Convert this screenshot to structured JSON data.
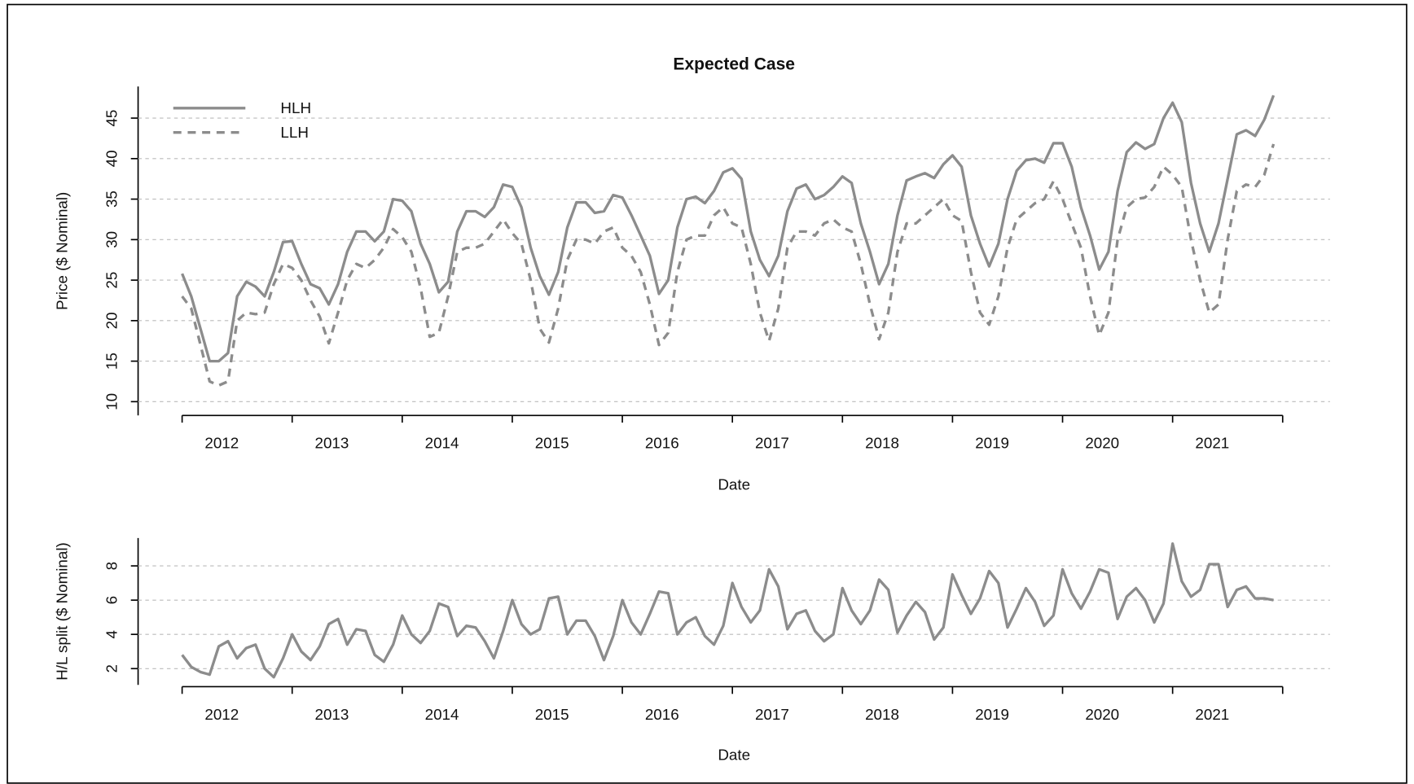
{
  "chart_data": [
    {
      "type": "line",
      "title": "Expected Case",
      "xlabel": "Date",
      "ylabel": "Price ($ Nominal)",
      "x": [
        2012,
        2012.083,
        2012.167,
        2012.25,
        2012.333,
        2012.417,
        2012.5,
        2012.583,
        2012.667,
        2012.75,
        2012.833,
        2012.917,
        2013,
        2013.083,
        2013.167,
        2013.25,
        2013.333,
        2013.417,
        2013.5,
        2013.583,
        2013.667,
        2013.75,
        2013.833,
        2013.917,
        2014,
        2014.083,
        2014.167,
        2014.25,
        2014.333,
        2014.417,
        2014.5,
        2014.583,
        2014.667,
        2014.75,
        2014.833,
        2014.917,
        2015,
        2015.083,
        2015.167,
        2015.25,
        2015.333,
        2015.417,
        2015.5,
        2015.583,
        2015.667,
        2015.75,
        2015.833,
        2015.917,
        2016,
        2016.083,
        2016.167,
        2016.25,
        2016.333,
        2016.417,
        2016.5,
        2016.583,
        2016.667,
        2016.75,
        2016.833,
        2016.917,
        2017,
        2017.083,
        2017.167,
        2017.25,
        2017.333,
        2017.417,
        2017.5,
        2017.583,
        2017.667,
        2017.75,
        2017.833,
        2017.917,
        2018,
        2018.083,
        2018.167,
        2018.25,
        2018.333,
        2018.417,
        2018.5,
        2018.583,
        2018.667,
        2018.75,
        2018.833,
        2018.917,
        2019,
        2019.083,
        2019.167,
        2019.25,
        2019.333,
        2019.417,
        2019.5,
        2019.583,
        2019.667,
        2019.75,
        2019.833,
        2019.917,
        2020,
        2020.083,
        2020.167,
        2020.25,
        2020.333,
        2020.417,
        2020.5,
        2020.583,
        2020.667,
        2020.75,
        2020.833,
        2020.917,
        2021,
        2021.083,
        2021.167,
        2021.25,
        2021.333,
        2021.417,
        2021.5,
        2021.583,
        2021.667,
        2021.75,
        2021.833,
        2021.917
      ],
      "series": [
        {
          "name": "HLH",
          "color": "#8c8c8c",
          "style": "solid",
          "values": [
            25.8,
            23,
            19,
            15,
            15,
            16,
            23,
            24.8,
            24.2,
            23,
            26,
            29.7,
            29.8,
            27,
            24.5,
            24,
            22,
            24.5,
            28.5,
            31,
            31,
            29.8,
            31,
            35,
            34.8,
            33.5,
            29.5,
            27,
            23.5,
            24.8,
            31,
            33.5,
            33.5,
            32.8,
            34,
            36.8,
            36.5,
            34,
            29,
            25.5,
            23.2,
            26,
            31.5,
            34.6,
            34.6,
            33.3,
            33.5,
            35.5,
            35.2,
            33,
            30.5,
            28,
            23.3,
            25,
            31.5,
            35,
            35.3,
            34.5,
            36,
            38.3,
            38.8,
            37.5,
            31,
            27.5,
            25.5,
            28,
            33.5,
            36.3,
            36.8,
            35,
            35.5,
            36.5,
            37.8,
            37,
            32,
            28.5,
            24.5,
            27,
            33,
            37.3,
            37.8,
            38.2,
            37.6,
            39.3,
            40.4,
            39,
            33,
            29.5,
            26.7,
            29.5,
            35,
            38.5,
            39.8,
            40,
            39.5,
            41.9,
            41.9,
            39,
            34,
            30.5,
            26.3,
            28.5,
            36,
            40.8,
            42,
            41.2,
            41.8,
            45,
            46.9,
            44.5,
            37,
            32,
            28.5,
            32,
            37.5,
            43,
            43.5,
            42.8,
            44.8,
            47.8
          ]
        },
        {
          "name": "LLH",
          "color": "#8c8c8c",
          "style": "dashed",
          "values": [
            23,
            21.5,
            17,
            12.5,
            12,
            12.5,
            20,
            21,
            20.8,
            21,
            24.5,
            27,
            26.5,
            25,
            22.5,
            20.5,
            17.2,
            21,
            25,
            27,
            26.5,
            27.5,
            29,
            31.3,
            30.3,
            28.5,
            24,
            18,
            18.5,
            23,
            28.5,
            29,
            29,
            29.5,
            31,
            32.5,
            30.8,
            29.5,
            25,
            19,
            17.3,
            21.5,
            27.5,
            30,
            30,
            29.5,
            31,
            31.5,
            29,
            28,
            26,
            22,
            17,
            18.5,
            26,
            30,
            30.5,
            30.5,
            33,
            34,
            32,
            31.5,
            27,
            21,
            17.5,
            21.5,
            29,
            31,
            31,
            30.5,
            32,
            32.5,
            31.5,
            31,
            27,
            22,
            17.7,
            21,
            28.5,
            32,
            32,
            33,
            34,
            35,
            33,
            32.3,
            26,
            21,
            19.5,
            23,
            29,
            32.5,
            33.5,
            34.5,
            35,
            37.2,
            35,
            32,
            29,
            23,
            18.2,
            21,
            30,
            34,
            35,
            35.2,
            36.5,
            39,
            38,
            36.5,
            30,
            25,
            21,
            22,
            30,
            36,
            36.8,
            36.5,
            38,
            41.8
          ]
        }
      ],
      "xlim": [
        2011.6,
        2022.43
      ],
      "ylim": [
        8.3,
        48.9
      ],
      "xticks": [
        {
          "value": 2012,
          "label": "2012"
        },
        {
          "value": 2013,
          "label": "2013"
        },
        {
          "value": 2014,
          "label": "2014"
        },
        {
          "value": 2015,
          "label": "2015"
        },
        {
          "value": 2016,
          "label": "2016"
        },
        {
          "value": 2017,
          "label": "2017"
        },
        {
          "value": 2018,
          "label": "2018"
        },
        {
          "value": 2019,
          "label": "2019"
        },
        {
          "value": 2020,
          "label": "2020"
        },
        {
          "value": 2021,
          "label": "2021"
        },
        {
          "value": 2022,
          "label": null
        }
      ],
      "yticks": [
        10,
        15,
        20,
        25,
        30,
        35,
        40,
        45
      ],
      "grid": true,
      "legend": "top-left"
    },
    {
      "type": "line",
      "xlabel": "Date",
      "ylabel": "H/L split ($ Nominal)",
      "x": [
        2012,
        2012.083,
        2012.167,
        2012.25,
        2012.333,
        2012.417,
        2012.5,
        2012.583,
        2012.667,
        2012.75,
        2012.833,
        2012.917,
        2013,
        2013.083,
        2013.167,
        2013.25,
        2013.333,
        2013.417,
        2013.5,
        2013.583,
        2013.667,
        2013.75,
        2013.833,
        2013.917,
        2014,
        2014.083,
        2014.167,
        2014.25,
        2014.333,
        2014.417,
        2014.5,
        2014.583,
        2014.667,
        2014.75,
        2014.833,
        2014.917,
        2015,
        2015.083,
        2015.167,
        2015.25,
        2015.333,
        2015.417,
        2015.5,
        2015.583,
        2015.667,
        2015.75,
        2015.833,
        2015.917,
        2016,
        2016.083,
        2016.167,
        2016.25,
        2016.333,
        2016.417,
        2016.5,
        2016.583,
        2016.667,
        2016.75,
        2016.833,
        2016.917,
        2017,
        2017.083,
        2017.167,
        2017.25,
        2017.333,
        2017.417,
        2017.5,
        2017.583,
        2017.667,
        2017.75,
        2017.833,
        2017.917,
        2018,
        2018.083,
        2018.167,
        2018.25,
        2018.333,
        2018.417,
        2018.5,
        2018.583,
        2018.667,
        2018.75,
        2018.833,
        2018.917,
        2019,
        2019.083,
        2019.167,
        2019.25,
        2019.333,
        2019.417,
        2019.5,
        2019.583,
        2019.667,
        2019.75,
        2019.833,
        2019.917,
        2020,
        2020.083,
        2020.167,
        2020.25,
        2020.333,
        2020.417,
        2020.5,
        2020.583,
        2020.667,
        2020.75,
        2020.833,
        2020.917,
        2021,
        2021.083,
        2021.167,
        2021.25,
        2021.333,
        2021.417,
        2021.5,
        2021.583,
        2021.667,
        2021.75,
        2021.833,
        2021.917
      ],
      "series": [
        {
          "color": "#8c8c8c",
          "style": "solid",
          "values": [
            2.8,
            2.1,
            1.8,
            1.65,
            3.3,
            3.6,
            2.6,
            3.2,
            3.4,
            2.0,
            1.5,
            2.6,
            4.0,
            3.0,
            2.5,
            3.3,
            4.6,
            4.9,
            3.4,
            4.3,
            4.2,
            2.8,
            2.4,
            3.4,
            5.1,
            4.0,
            3.5,
            4.2,
            5.8,
            5.6,
            3.9,
            4.5,
            4.4,
            3.6,
            2.6,
            4.2,
            6.0,
            4.6,
            4.0,
            4.3,
            6.1,
            6.2,
            4.0,
            4.8,
            4.8,
            3.9,
            2.5,
            3.9,
            6.0,
            4.7,
            4.0,
            5.2,
            6.5,
            6.4,
            4.0,
            4.7,
            5.0,
            3.9,
            3.4,
            4.5,
            7.0,
            5.6,
            4.7,
            5.4,
            7.8,
            6.8,
            4.3,
            5.2,
            5.4,
            4.2,
            3.6,
            4.0,
            6.7,
            5.4,
            4.6,
            5.4,
            7.2,
            6.6,
            4.1,
            5.1,
            5.9,
            5.3,
            3.7,
            4.4,
            7.5,
            6.3,
            5.2,
            6.1,
            7.7,
            7.0,
            4.4,
            5.5,
            6.7,
            5.9,
            4.5,
            5.1,
            7.8,
            6.4,
            5.5,
            6.5,
            7.8,
            7.6,
            4.9,
            6.2,
            6.7,
            6.0,
            4.7,
            5.8,
            9.3,
            7.1,
            6.2,
            6.6,
            8.1,
            8.1,
            5.6,
            6.6,
            6.8,
            6.1,
            6.1,
            6.0
          ]
        }
      ],
      "xlim": [
        2011.6,
        2022.43
      ],
      "ylim": [
        1.05,
        9.63
      ],
      "xticks": [
        {
          "value": 2012,
          "label": "2012"
        },
        {
          "value": 2013,
          "label": "2013"
        },
        {
          "value": 2014,
          "label": "2014"
        },
        {
          "value": 2015,
          "label": "2015"
        },
        {
          "value": 2016,
          "label": "2016"
        },
        {
          "value": 2017,
          "label": "2017"
        },
        {
          "value": 2018,
          "label": "2018"
        },
        {
          "value": 2019,
          "label": "2019"
        },
        {
          "value": 2020,
          "label": "2020"
        },
        {
          "value": 2021,
          "label": "2021"
        },
        {
          "value": 2022,
          "label": null
        }
      ],
      "yticks": [
        2,
        4,
        6,
        8
      ],
      "grid": true
    }
  ]
}
